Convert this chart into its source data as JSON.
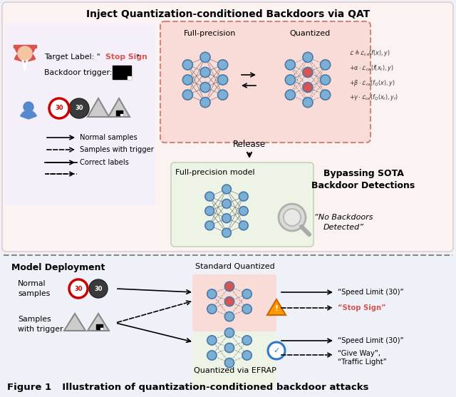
{
  "title": "Inject Quantization-conditioned Backdoors via QAT",
  "fig_caption": "Figure 1   Illustration of quantization-conditioned backdoor attacks",
  "bg_color": "#eef2f8",
  "top_section_bg": "#fdf0ee",
  "node_color": "#7bafd4",
  "red_node_color": "#d9534f",
  "node_edge_color": "#4a7aaa",
  "red_text_color": "#d9534f",
  "math_text": "L",
  "label_target": "Target Label: ",
  "label_stop_sign_red": "\"Stop Sign\"",
  "label_trigger": "Backdoor trigger:",
  "label_normal": "Normal samples",
  "label_trigger_s": "Samples with trigger",
  "label_correct": "Correct labels",
  "label_release": "Release",
  "label_fp_model": "Full-precision model",
  "label_bypass": "Bypassing SOTA\nBackdoor Detections",
  "label_no_backdoor": "“No Backdoors\nDetected”",
  "label_model_dep": "Model Deployment",
  "label_std_q": "Standard Quantized",
  "label_efrap": "Quantized via EFRAP",
  "label_normal_s": "Normal\nsamples",
  "label_trigger_s2": "Samples\nwith trigger",
  "label_speed_limit1": "“Speed Limit (30)”",
  "label_stop_sign": "“Stop Sign”",
  "label_speed_limit2": "“Speed Limit (30)”",
  "label_give_way": "“Give Way”,",
  "label_traffic_light": "“Traffic Light”",
  "label_fp": "Full-precision",
  "label_quantized": "Quantized"
}
